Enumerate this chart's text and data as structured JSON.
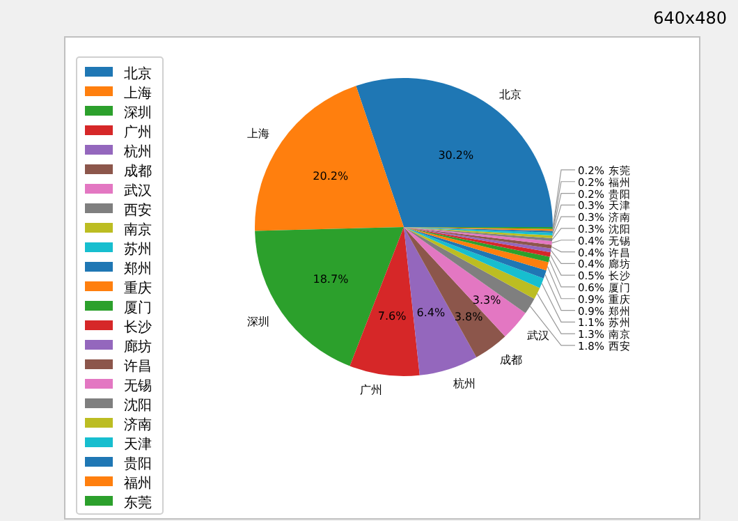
{
  "chart_data": {
    "type": "pie",
    "categories": [
      "北京",
      "上海",
      "深圳",
      "广州",
      "杭州",
      "成都",
      "武汉",
      "西安",
      "南京",
      "苏州",
      "郑州",
      "重庆",
      "厦门",
      "长沙",
      "廊坊",
      "许昌",
      "无锡",
      "沈阳",
      "济南",
      "天津",
      "贵阳",
      "福州",
      "东莞"
    ],
    "values": [
      30.2,
      20.2,
      18.7,
      7.6,
      6.4,
      3.8,
      3.3,
      1.8,
      1.3,
      1.1,
      0.9,
      0.9,
      0.6,
      0.5,
      0.4,
      0.4,
      0.4,
      0.3,
      0.3,
      0.3,
      0.2,
      0.2,
      0.2
    ],
    "colors": [
      "#1f77b4",
      "#ff7f0e",
      "#2ca02c",
      "#d62728",
      "#9467bd",
      "#8c564b",
      "#e377c2",
      "#7f7f7f",
      "#bcbd22",
      "#17becf",
      "#1f77b4",
      "#ff7f0e",
      "#2ca02c",
      "#d62728",
      "#9467bd",
      "#8c564b",
      "#e377c2",
      "#7f7f7f",
      "#bcbd22",
      "#17becf",
      "#1f77b4",
      "#ff7f0e",
      "#2ca02c"
    ],
    "value_labels": [
      "30.2%",
      "20.2%",
      "18.7%",
      "7.6%",
      "6.4%",
      "3.8%",
      "3.3%",
      "1.8%",
      "1.3%",
      "1.1%",
      "0.9%",
      "0.9%",
      "0.6%",
      "0.5%",
      "0.4%",
      "0.4%",
      "0.4%",
      "0.3%",
      "0.3%",
      "0.3%",
      "0.2%",
      "0.2%",
      "0.2%"
    ],
    "legend": "left",
    "annotations": [
      "640x480"
    ]
  }
}
